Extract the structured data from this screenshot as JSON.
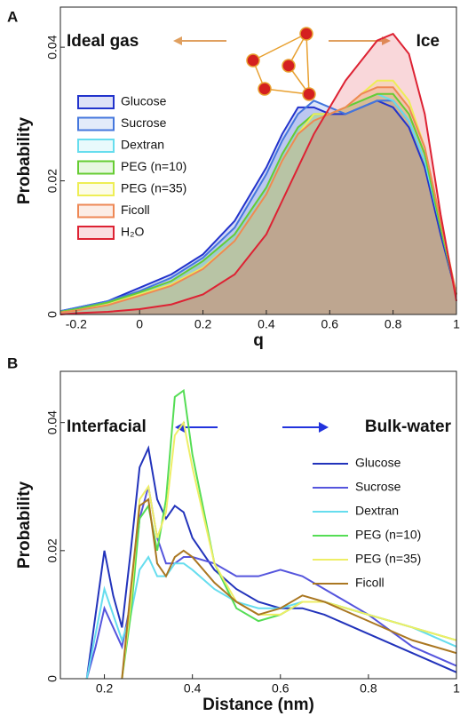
{
  "chart_data": [
    {
      "type": "area",
      "panel": "A",
      "xlabel": "q",
      "ylabel": "Probability",
      "annotations": [
        "Ideal gas",
        "Ice"
      ],
      "x": [
        -0.25,
        -0.2,
        -0.1,
        0,
        0.1,
        0.2,
        0.3,
        0.4,
        0.45,
        0.5,
        0.55,
        0.6,
        0.65,
        0.7,
        0.75,
        0.8,
        0.85,
        0.9,
        0.95,
        1
      ],
      "series": [
        {
          "name": "Glucose",
          "color": "#2233cc",
          "values": [
            0.0005,
            0.001,
            0.002,
            0.004,
            0.006,
            0.009,
            0.014,
            0.022,
            0.027,
            0.031,
            0.031,
            0.03,
            0.03,
            0.031,
            0.032,
            0.031,
            0.028,
            0.022,
            0.012,
            0.003
          ]
        },
        {
          "name": "Sucrose",
          "color": "#4477dd",
          "values": [
            0.0005,
            0.001,
            0.002,
            0.0035,
            0.0055,
            0.0085,
            0.013,
            0.021,
            0.026,
            0.03,
            0.032,
            0.031,
            0.03,
            0.031,
            0.032,
            0.032,
            0.029,
            0.023,
            0.013,
            0.003
          ]
        },
        {
          "name": "Dextran",
          "color": "#66ddee",
          "values": [
            0.0004,
            0.0008,
            0.0018,
            0.0032,
            0.005,
            0.008,
            0.012,
            0.019,
            0.024,
            0.028,
            0.03,
            0.03,
            0.031,
            0.032,
            0.033,
            0.032,
            0.029,
            0.023,
            0.013,
            0.003
          ]
        },
        {
          "name": "PEG (n=10)",
          "color": "#66cc33",
          "values": [
            0.0004,
            0.0008,
            0.0018,
            0.0033,
            0.005,
            0.008,
            0.012,
            0.019,
            0.024,
            0.028,
            0.03,
            0.03,
            0.031,
            0.032,
            0.033,
            0.033,
            0.03,
            0.024,
            0.013,
            0.003
          ]
        },
        {
          "name": "PEG (n=35)",
          "color": "#eeee55",
          "values": [
            0.0003,
            0.0006,
            0.0015,
            0.003,
            0.0045,
            0.007,
            0.011,
            0.018,
            0.023,
            0.027,
            0.03,
            0.03,
            0.031,
            0.033,
            0.035,
            0.035,
            0.032,
            0.025,
            0.014,
            0.003
          ]
        },
        {
          "name": "Ficoll",
          "color": "#ee8855",
          "values": [
            0.0003,
            0.0006,
            0.0014,
            0.0028,
            0.0043,
            0.0068,
            0.011,
            0.018,
            0.023,
            0.027,
            0.029,
            0.03,
            0.031,
            0.033,
            0.034,
            0.034,
            0.031,
            0.025,
            0.014,
            0.003
          ]
        },
        {
          "name": "H₂O",
          "color": "#dd2233",
          "values": [
            0,
            0.0002,
            0.0004,
            0.0008,
            0.0015,
            0.003,
            0.006,
            0.012,
            0.017,
            0.022,
            0.027,
            0.031,
            0.035,
            0.038,
            0.041,
            0.042,
            0.039,
            0.03,
            0.015,
            0.002
          ]
        }
      ],
      "xlim": [
        -0.25,
        1
      ],
      "ylim": [
        0,
        0.046
      ],
      "xticks": [
        -0.2,
        0,
        0.2,
        0.4,
        0.6,
        0.8,
        1
      ],
      "yticks": [
        0,
        0.02,
        0.04
      ],
      "legend": "left"
    },
    {
      "type": "line",
      "panel": "B",
      "xlabel": "Distance (nm)",
      "ylabel": "Probability",
      "annotations": [
        "Interfacial",
        "Bulk-water"
      ],
      "x": [
        0.16,
        0.18,
        0.2,
        0.22,
        0.24,
        0.26,
        0.28,
        0.3,
        0.32,
        0.34,
        0.36,
        0.38,
        0.4,
        0.45,
        0.5,
        0.55,
        0.6,
        0.65,
        0.7,
        0.8,
        0.9,
        1
      ],
      "series": [
        {
          "name": "Glucose",
          "color": "#2233bb",
          "values": [
            0,
            0.01,
            0.02,
            0.013,
            0.008,
            0.02,
            0.033,
            0.036,
            0.028,
            0.025,
            0.027,
            0.026,
            0.022,
            0.017,
            0.014,
            0.012,
            0.011,
            0.011,
            0.01,
            0.007,
            0.004,
            0.001
          ]
        },
        {
          "name": "Sucrose",
          "color": "#5555dd",
          "values": [
            0,
            0.005,
            0.011,
            0.008,
            0.005,
            0.012,
            0.025,
            0.03,
            0.022,
            0.018,
            0.018,
            0.019,
            0.019,
            0.018,
            0.016,
            0.016,
            0.017,
            0.016,
            0.014,
            0.01,
            0.005,
            0.002
          ]
        },
        {
          "name": "Dextran",
          "color": "#66ddee",
          "values": [
            0,
            0.007,
            0.014,
            0.01,
            0.006,
            0.01,
            0.017,
            0.019,
            0.016,
            0.016,
            0.018,
            0.018,
            0.017,
            0.014,
            0.012,
            0.011,
            0.011,
            0.012,
            0.012,
            0.01,
            0.008,
            0.005
          ]
        },
        {
          "name": "PEG (n=10)",
          "color": "#55dd55",
          "values": [
            null,
            null,
            null,
            null,
            0,
            0.01,
            0.025,
            0.027,
            0.02,
            0.028,
            0.044,
            0.045,
            0.035,
            0.018,
            0.011,
            0.009,
            0.01,
            0.012,
            0.012,
            0.01,
            0.008,
            0.006
          ]
        },
        {
          "name": "PEG (n=35)",
          "color": "#eeee66",
          "values": [
            null,
            null,
            null,
            null,
            0,
            0.012,
            0.028,
            0.03,
            0.022,
            0.026,
            0.038,
            0.04,
            0.033,
            0.018,
            0.012,
            0.01,
            0.01,
            0.012,
            0.012,
            0.01,
            0.008,
            0.006
          ]
        },
        {
          "name": "Ficoll",
          "color": "#aa7722",
          "values": [
            null,
            null,
            null,
            null,
            0,
            0.014,
            0.027,
            0.028,
            0.018,
            0.016,
            0.019,
            0.02,
            0.019,
            0.015,
            0.012,
            0.01,
            0.011,
            0.013,
            0.012,
            0.009,
            0.006,
            0.004
          ]
        }
      ],
      "xlim": [
        0.1,
        1
      ],
      "ylim": [
        0,
        0.048
      ],
      "xticks": [
        0.2,
        0.4,
        0.6,
        0.8,
        1
      ],
      "yticks": [
        0,
        0.02,
        0.04
      ],
      "legend": "right"
    }
  ]
}
